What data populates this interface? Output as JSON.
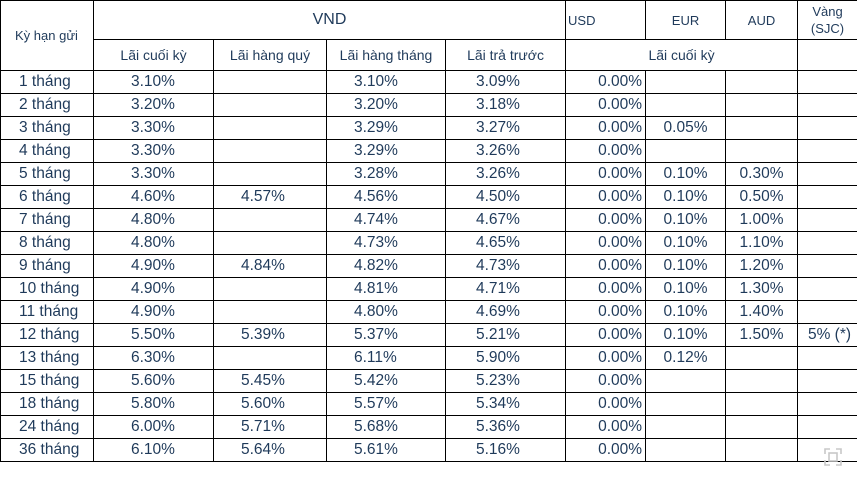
{
  "header": {
    "term": "Kỳ hạn gửi",
    "vnd": "VND",
    "usd": "USD",
    "eur": "EUR",
    "aud": "AUD",
    "gold": "Vàng (SJC)",
    "vnd_cols": [
      "Lãi cuối kỳ",
      "Lãi hàng quý",
      "Lãi hàng tháng",
      "Lãi trả trước"
    ],
    "foreign_cols": "Lãi cuối kỳ"
  },
  "rows": [
    {
      "term": "1 tháng",
      "cuoi_ky": "3.10%",
      "hang_quy": "",
      "hang_thang": "3.10%",
      "tra_truoc": "3.09%",
      "usd": "0.00%",
      "eur": "",
      "aud": "",
      "gold": ""
    },
    {
      "term": "2 tháng",
      "cuoi_ky": "3.20%",
      "hang_quy": "",
      "hang_thang": "3.20%",
      "tra_truoc": "3.18%",
      "usd": "0.00%",
      "eur": "",
      "aud": "",
      "gold": ""
    },
    {
      "term": "3 tháng",
      "cuoi_ky": "3.30%",
      "hang_quy": "",
      "hang_thang": "3.29%",
      "tra_truoc": "3.27%",
      "usd": "0.00%",
      "eur": "0.05%",
      "aud": "",
      "gold": ""
    },
    {
      "term": "4 tháng",
      "cuoi_ky": "3.30%",
      "hang_quy": "",
      "hang_thang": "3.29%",
      "tra_truoc": "3.26%",
      "usd": "0.00%",
      "eur": "",
      "aud": "",
      "gold": ""
    },
    {
      "term": "5 tháng",
      "cuoi_ky": "3.30%",
      "hang_quy": "",
      "hang_thang": "3.28%",
      "tra_truoc": "3.26%",
      "usd": "0.00%",
      "eur": "0.10%",
      "aud": "0.30%",
      "gold": ""
    },
    {
      "term": "6 tháng",
      "cuoi_ky": "4.60%",
      "hang_quy": "4.57%",
      "hang_thang": "4.56%",
      "tra_truoc": "4.50%",
      "usd": "0.00%",
      "eur": "0.10%",
      "aud": "0.50%",
      "gold": ""
    },
    {
      "term": "7 tháng",
      "cuoi_ky": "4.80%",
      "hang_quy": "",
      "hang_thang": "4.74%",
      "tra_truoc": "4.67%",
      "usd": "0.00%",
      "eur": "0.10%",
      "aud": "1.00%",
      "gold": ""
    },
    {
      "term": "8 tháng",
      "cuoi_ky": "4.80%",
      "hang_quy": "",
      "hang_thang": "4.73%",
      "tra_truoc": "4.65%",
      "usd": "0.00%",
      "eur": "0.10%",
      "aud": "1.10%",
      "gold": ""
    },
    {
      "term": "9 tháng",
      "cuoi_ky": "4.90%",
      "hang_quy": "4.84%",
      "hang_thang": "4.82%",
      "tra_truoc": "4.73%",
      "usd": "0.00%",
      "eur": "0.10%",
      "aud": "1.20%",
      "gold": ""
    },
    {
      "term": "10 tháng",
      "cuoi_ky": "4.90%",
      "hang_quy": "",
      "hang_thang": "4.81%",
      "tra_truoc": "4.71%",
      "usd": "0.00%",
      "eur": "0.10%",
      "aud": "1.30%",
      "gold": ""
    },
    {
      "term": "11 tháng",
      "cuoi_ky": "4.90%",
      "hang_quy": "",
      "hang_thang": "4.80%",
      "tra_truoc": "4.69%",
      "usd": "0.00%",
      "eur": "0.10%",
      "aud": "1.40%",
      "gold": ""
    },
    {
      "term": "12 tháng",
      "cuoi_ky": "5.50%",
      "hang_quy": "5.39%",
      "hang_thang": "5.37%",
      "tra_truoc": "5.21%",
      "usd": "0.00%",
      "eur": "0.10%",
      "aud": "1.50%",
      "gold": "5% (*)"
    },
    {
      "term": "13 tháng",
      "cuoi_ky": "6.30%",
      "hang_quy": "",
      "hang_thang": "6.11%",
      "tra_truoc": "5.90%",
      "usd": "0.00%",
      "eur": "0.12%",
      "aud": "",
      "gold": ""
    },
    {
      "term": "15 tháng",
      "cuoi_ky": "5.60%",
      "hang_quy": "5.45%",
      "hang_thang": "5.42%",
      "tra_truoc": "5.23%",
      "usd": "0.00%",
      "eur": "",
      "aud": "",
      "gold": ""
    },
    {
      "term": "18 tháng",
      "cuoi_ky": "5.80%",
      "hang_quy": "5.60%",
      "hang_thang": "5.57%",
      "tra_truoc": "5.34%",
      "usd": "0.00%",
      "eur": "",
      "aud": "",
      "gold": ""
    },
    {
      "term": "24 tháng",
      "cuoi_ky": "6.00%",
      "hang_quy": "5.71%",
      "hang_thang": "5.68%",
      "tra_truoc": "5.36%",
      "usd": "0.00%",
      "eur": "",
      "aud": "",
      "gold": ""
    },
    {
      "term": "36  tháng",
      "cuoi_ky": "6.10%",
      "hang_quy": "5.64%",
      "hang_thang": "5.61%",
      "tra_truoc": "5.16%",
      "usd": "0.00%",
      "eur": "",
      "aud": "",
      "gold": ""
    }
  ],
  "icons": {
    "expand": "expand-icon"
  }
}
